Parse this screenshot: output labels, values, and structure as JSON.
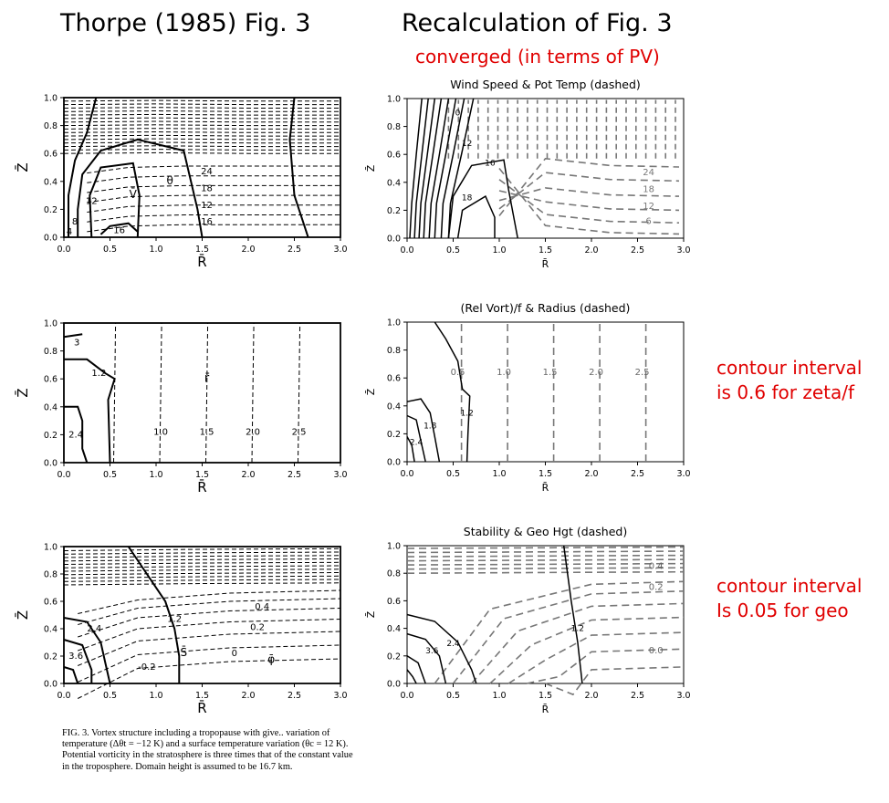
{
  "header": {
    "left_title": "Thorpe (1985) Fig. 3",
    "right_title": "Recalculation of  Fig. 3",
    "right_subtitle": "converged (in terms of PV)"
  },
  "notes": {
    "zeta_line1": "contour interval",
    "zeta_line2": "is 0.6 for zeta/f",
    "geo_line1": "contour interval",
    "geo_line2": "Is 0.05 for geo"
  },
  "caption": "FIG. 3. Vortex structure including a tropopause with give.. variation of temperature (Δθt = −12 K) and a surface temperature variation (θc = 12 K). Potential vorticity in the stratosphere is three times that of the constant value in the troposphere. Domain height is assumed to be 16.7 km.",
  "colors": {
    "note_red": "#e00000",
    "dashed_gray": "#777777",
    "solid": "#000000"
  },
  "chart_data": [
    {
      "type": "contour",
      "panel": "scanned-top",
      "xlabel": "R̄",
      "ylabel": "Z̄",
      "xlim": [
        0,
        3
      ],
      "ylim": [
        0,
        1
      ],
      "xticks": [
        "0.0",
        "0.5",
        "1.0",
        "1.5",
        "2.0",
        "2.5",
        "3.0"
      ],
      "yticks": [
        "0.0",
        "0.2",
        "0.4",
        "0.6",
        "0.8",
        "1.0"
      ],
      "labels": [
        "θ",
        "V̄",
        "24",
        "18",
        "12",
        "16",
        "12",
        "8",
        "4",
        "16"
      ]
    },
    {
      "type": "contour",
      "panel": "recalc-top",
      "title": "Wind Speed & Pot Temp (dashed)",
      "xlabel": "R̄",
      "ylabel": "Z̄",
      "xlim": [
        0,
        3
      ],
      "ylim": [
        0,
        1
      ],
      "xticks": [
        "0.0",
        "0.5",
        "1.0",
        "1.5",
        "2.0",
        "2.5",
        "3.0"
      ],
      "yticks": [
        "0.0",
        "0.2",
        "0.4",
        "0.6",
        "0.8",
        "1.0"
      ],
      "solid_labels": [
        "12",
        "16",
        "18",
        "0"
      ],
      "dashed_labels": [
        "24",
        "18",
        "12",
        "6"
      ]
    },
    {
      "type": "contour",
      "panel": "scanned-middle",
      "xlabel": "R̄",
      "ylabel": "Z̄",
      "xlim": [
        0,
        3
      ],
      "ylim": [
        0,
        1
      ],
      "xticks": [
        "0.0",
        "0.5",
        "1.0",
        "1.5",
        "2.0",
        "2.5",
        "3.0"
      ],
      "yticks": [
        "0.0",
        "0.2",
        "0.4",
        "0.6",
        "0.8",
        "1.0"
      ],
      "labels": [
        "3",
        "1.2",
        "2.4",
        "r̄",
        "1.0",
        "1.5",
        "2.0",
        "2.5"
      ]
    },
    {
      "type": "contour",
      "panel": "recalc-middle",
      "title": "(Rel Vort)/f & Radius (dashed)",
      "xlabel": "R̄",
      "ylabel": "Z̄",
      "xlim": [
        0,
        3
      ],
      "ylim": [
        0,
        1
      ],
      "xticks": [
        "0.0",
        "0.5",
        "1.0",
        "1.5",
        "2.0",
        "2.5",
        "3.0"
      ],
      "yticks": [
        "0.0",
        "0.2",
        "0.4",
        "0.6",
        "0.8",
        "1.0"
      ],
      "solid_labels": [
        "1.2",
        "1.8",
        "2.4"
      ],
      "dashed_labels": [
        "0.5",
        "1.0",
        "1.5",
        "2.0",
        "2.5"
      ]
    },
    {
      "type": "contour",
      "panel": "scanned-bottom",
      "xlabel": "R̄",
      "ylabel": "Z̄",
      "xlim": [
        0,
        3
      ],
      "ylim": [
        0,
        1
      ],
      "xticks": [
        "0.0",
        "0.5",
        "1.0",
        "1.5",
        "2.0",
        "2.5",
        "3.0"
      ],
      "yticks": [
        "0.0",
        "0.2",
        "0.4",
        "0.6",
        "0.8",
        "1.0"
      ],
      "labels": [
        "0.4",
        "0.2",
        "0",
        "-0.2",
        "1.2",
        "S̄",
        "φ̄",
        "2.4",
        "3.6"
      ]
    },
    {
      "type": "contour",
      "panel": "recalc-bottom",
      "title": "Stability & Geo Hgt (dashed)",
      "xlabel": "R̄",
      "ylabel": "Z̄",
      "xlim": [
        0,
        3
      ],
      "ylim": [
        0,
        1
      ],
      "xticks": [
        "0.0",
        "0.5",
        "1.0",
        "1.5",
        "2.0",
        "2.5",
        "3.0"
      ],
      "yticks": [
        "0.0",
        "0.2",
        "0.4",
        "0.6",
        "0.8",
        "1.0"
      ],
      "solid_labels": [
        "1.2",
        "2.4",
        "3.6"
      ],
      "dashed_labels": [
        "0.4",
        "0.2",
        "0.0"
      ]
    }
  ]
}
